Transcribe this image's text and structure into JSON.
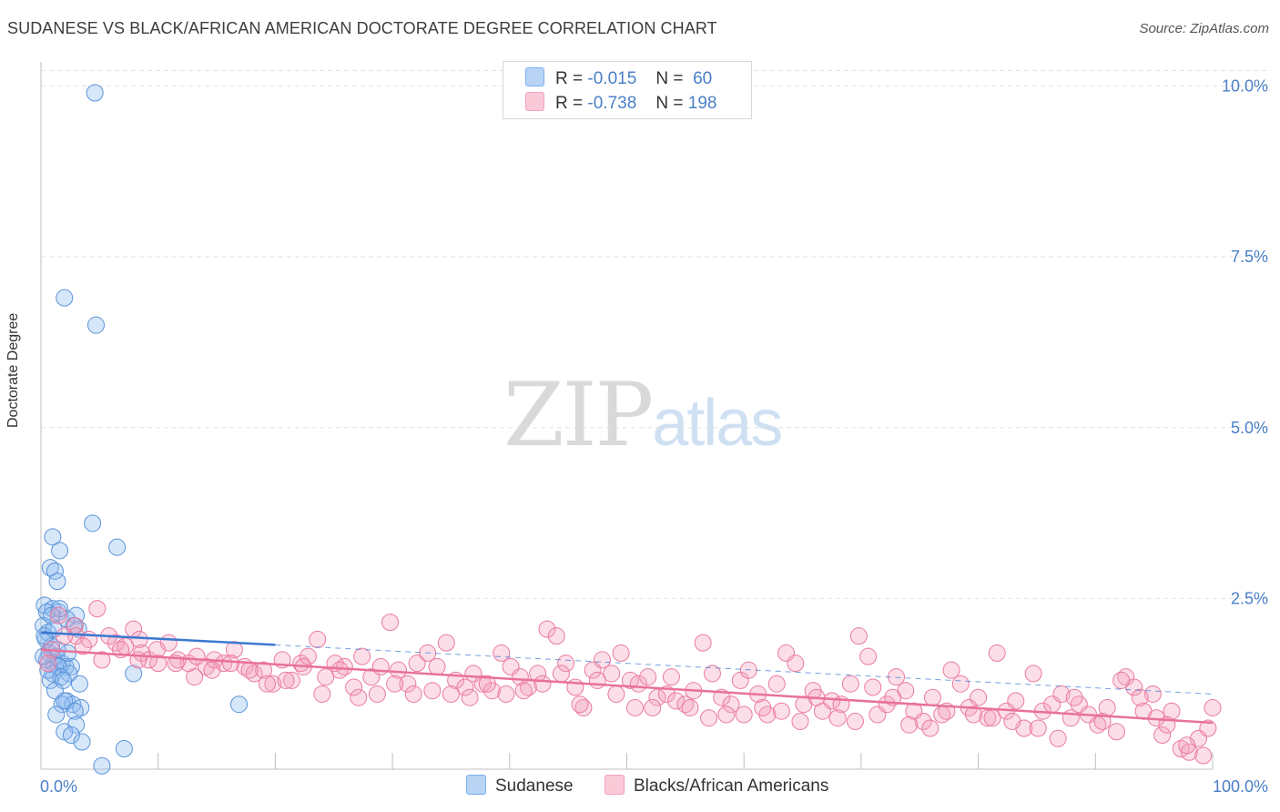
{
  "title": "SUDANESE VS BLACK/AFRICAN AMERICAN DOCTORATE DEGREE CORRELATION CHART",
  "source": "Source: ZipAtlas.com",
  "watermark": {
    "part1": "ZIP",
    "part2": "atlas"
  },
  "legend": {
    "r_label": "R =",
    "n_label": "N =",
    "series": [
      {
        "r": "-0.015",
        "n": "60",
        "color": "#7aaef0"
      },
      {
        "r": "-0.738",
        "n": "198",
        "color": "#f4a0bc"
      }
    ]
  },
  "bottom_legend": {
    "items": [
      "Sudanese",
      "Blacks/African Americans"
    ]
  },
  "chart_data": {
    "type": "scatter",
    "title": "SUDANESE VS BLACK/AFRICAN AMERICAN DOCTORATE DEGREE CORRELATION CHART",
    "xlabel": "",
    "ylabel": "Doctorate Degree",
    "xlim": [
      0,
      100
    ],
    "ylim": [
      0,
      10.3
    ],
    "x_tick_labels": [
      "0.0%",
      "100.0%"
    ],
    "y_ticks": [
      2.5,
      5.0,
      7.5,
      10.0
    ],
    "y_tick_labels": [
      "2.5%",
      "5.0%",
      "7.5%",
      "10.0%"
    ],
    "grid": true,
    "series": [
      {
        "name": "Sudanese",
        "color": "#7aaef0",
        "stroke": "#5b93d8",
        "trend": {
          "x0": 0,
          "y0": 2.0,
          "x1": 20,
          "y1": 1.82,
          "dash_x1": 100,
          "dash_y1": 1.1,
          "color": "#3a78d0"
        },
        "points": [
          [
            4.6,
            9.9
          ],
          [
            2.0,
            6.9
          ],
          [
            4.7,
            6.5
          ],
          [
            4.4,
            3.6
          ],
          [
            1.0,
            3.4
          ],
          [
            6.5,
            3.25
          ],
          [
            1.6,
            3.2
          ],
          [
            0.8,
            2.95
          ],
          [
            1.2,
            2.9
          ],
          [
            1.4,
            2.75
          ],
          [
            0.3,
            2.4
          ],
          [
            1.0,
            2.35
          ],
          [
            1.5,
            2.3
          ],
          [
            0.5,
            2.3
          ],
          [
            3.0,
            2.25
          ],
          [
            2.2,
            2.2
          ],
          [
            0.2,
            2.1
          ],
          [
            3.2,
            2.05
          ],
          [
            0.6,
            2.0
          ],
          [
            0.4,
            1.9
          ],
          [
            0.9,
            1.8
          ],
          [
            0.7,
            1.7
          ],
          [
            1.3,
            1.65
          ],
          [
            0.5,
            1.6
          ],
          [
            1.1,
            1.55
          ],
          [
            1.8,
            1.55
          ],
          [
            2.1,
            1.5
          ],
          [
            2.6,
            1.5
          ],
          [
            1.5,
            1.5
          ],
          [
            1.0,
            1.4
          ],
          [
            2.4,
            1.4
          ],
          [
            1.7,
            1.35
          ],
          [
            7.9,
            1.4
          ],
          [
            0.8,
            1.3
          ],
          [
            1.9,
            1.3
          ],
          [
            3.3,
            1.25
          ],
          [
            1.2,
            1.15
          ],
          [
            2.2,
            1.0
          ],
          [
            2.7,
            0.95
          ],
          [
            1.8,
            0.95
          ],
          [
            2.0,
            1.0
          ],
          [
            3.4,
            0.9
          ],
          [
            2.9,
            0.85
          ],
          [
            1.3,
            0.8
          ],
          [
            16.9,
            0.95
          ],
          [
            3.0,
            0.65
          ],
          [
            2.0,
            0.55
          ],
          [
            2.6,
            0.5
          ],
          [
            3.5,
            0.4
          ],
          [
            7.1,
            0.3
          ],
          [
            5.2,
            0.05
          ],
          [
            0.6,
            1.45
          ],
          [
            1.6,
            2.35
          ],
          [
            0.3,
            1.95
          ],
          [
            2.3,
            1.7
          ],
          [
            1.4,
            1.75
          ],
          [
            2.8,
            2.1
          ],
          [
            0.9,
            2.25
          ],
          [
            0.2,
            1.65
          ],
          [
            1.1,
            2.05
          ]
        ]
      },
      {
        "name": "Blacks/African Americans",
        "color": "#f4a0bc",
        "stroke": "#ea7aa0",
        "trend": {
          "x0": 0,
          "y0": 1.75,
          "x1": 100,
          "y1": 0.68,
          "color": "#e8719c"
        },
        "points": [
          [
            4.8,
            2.35
          ],
          [
            7.9,
            2.05
          ],
          [
            1.5,
            2.25
          ],
          [
            2.9,
            2.1
          ],
          [
            0.9,
            1.75
          ],
          [
            3.0,
            1.95
          ],
          [
            4.1,
            1.9
          ],
          [
            5.8,
            1.95
          ],
          [
            6.4,
            1.85
          ],
          [
            7.2,
            1.8
          ],
          [
            8.4,
            1.9
          ],
          [
            8.6,
            1.7
          ],
          [
            9.2,
            1.6
          ],
          [
            10.0,
            1.55
          ],
          [
            10.9,
            1.85
          ],
          [
            11.7,
            1.6
          ],
          [
            12.6,
            1.55
          ],
          [
            13.3,
            1.65
          ],
          [
            14.1,
            1.5
          ],
          [
            14.8,
            1.6
          ],
          [
            15.6,
            1.55
          ],
          [
            16.5,
            1.75
          ],
          [
            17.4,
            1.5
          ],
          [
            18.2,
            1.4
          ],
          [
            19.0,
            1.45
          ],
          [
            19.8,
            1.25
          ],
          [
            20.6,
            1.6
          ],
          [
            21.4,
            1.3
          ],
          [
            22.2,
            1.55
          ],
          [
            22.8,
            1.65
          ],
          [
            23.6,
            1.9
          ],
          [
            24.3,
            1.35
          ],
          [
            25.1,
            1.55
          ],
          [
            25.9,
            1.5
          ],
          [
            26.7,
            1.2
          ],
          [
            27.4,
            1.65
          ],
          [
            28.2,
            1.35
          ],
          [
            29.0,
            1.5
          ],
          [
            29.8,
            2.15
          ],
          [
            30.5,
            1.45
          ],
          [
            31.3,
            1.25
          ],
          [
            32.1,
            1.55
          ],
          [
            33.0,
            1.7
          ],
          [
            33.8,
            1.5
          ],
          [
            34.6,
            1.85
          ],
          [
            35.4,
            1.3
          ],
          [
            36.2,
            1.2
          ],
          [
            36.9,
            1.4
          ],
          [
            37.7,
            1.25
          ],
          [
            38.5,
            1.15
          ],
          [
            39.3,
            1.7
          ],
          [
            40.1,
            1.5
          ],
          [
            40.9,
            1.35
          ],
          [
            41.6,
            1.2
          ],
          [
            42.4,
            1.4
          ],
          [
            43.2,
            2.05
          ],
          [
            44.0,
            1.95
          ],
          [
            44.8,
            1.55
          ],
          [
            45.6,
            1.2
          ],
          [
            46.3,
            0.9
          ],
          [
            47.1,
            1.45
          ],
          [
            47.9,
            1.6
          ],
          [
            48.7,
            1.4
          ],
          [
            49.5,
            1.7
          ],
          [
            50.3,
            1.3
          ],
          [
            51.0,
            1.25
          ],
          [
            51.8,
            1.35
          ],
          [
            52.6,
            1.05
          ],
          [
            53.4,
            1.1
          ],
          [
            54.2,
            1.0
          ],
          [
            55.0,
            0.95
          ],
          [
            55.7,
            1.15
          ],
          [
            56.5,
            1.85
          ],
          [
            57.3,
            1.4
          ],
          [
            58.1,
            1.05
          ],
          [
            58.9,
            0.95
          ],
          [
            59.7,
            1.3
          ],
          [
            60.4,
            1.45
          ],
          [
            61.2,
            1.1
          ],
          [
            62.0,
            0.8
          ],
          [
            62.8,
            1.25
          ],
          [
            63.6,
            1.7
          ],
          [
            64.4,
            1.55
          ],
          [
            65.1,
            0.95
          ],
          [
            65.9,
            1.15
          ],
          [
            66.7,
            0.85
          ],
          [
            67.5,
            1.0
          ],
          [
            68.3,
            0.95
          ],
          [
            69.1,
            1.25
          ],
          [
            69.8,
            1.95
          ],
          [
            70.6,
            1.65
          ],
          [
            71.4,
            0.8
          ],
          [
            72.2,
            0.95
          ],
          [
            73.0,
            1.35
          ],
          [
            73.8,
            1.15
          ],
          [
            74.5,
            0.85
          ],
          [
            75.3,
            0.7
          ],
          [
            76.1,
            1.05
          ],
          [
            76.9,
            0.8
          ],
          [
            77.7,
            1.45
          ],
          [
            78.5,
            1.25
          ],
          [
            79.2,
            0.9
          ],
          [
            80.0,
            1.05
          ],
          [
            80.8,
            0.75
          ],
          [
            81.6,
            1.7
          ],
          [
            82.4,
            0.85
          ],
          [
            83.2,
            1.0
          ],
          [
            83.9,
            0.6
          ],
          [
            84.7,
            1.4
          ],
          [
            85.5,
            0.85
          ],
          [
            86.3,
            0.95
          ],
          [
            87.1,
            1.1
          ],
          [
            87.9,
            0.75
          ],
          [
            88.6,
            0.95
          ],
          [
            89.4,
            0.8
          ],
          [
            90.2,
            0.65
          ],
          [
            91.0,
            0.9
          ],
          [
            91.8,
            0.55
          ],
          [
            92.6,
            1.35
          ],
          [
            93.3,
            1.2
          ],
          [
            94.1,
            0.85
          ],
          [
            94.9,
            1.1
          ],
          [
            95.7,
            0.5
          ],
          [
            96.5,
            0.85
          ],
          [
            97.3,
            0.3
          ],
          [
            98.0,
            0.25
          ],
          [
            98.8,
            0.45
          ],
          [
            99.6,
            0.6
          ],
          [
            100.0,
            0.9
          ],
          [
            99.2,
            0.2
          ],
          [
            97.8,
            0.35
          ],
          [
            96.1,
            0.65
          ],
          [
            95.2,
            0.75
          ],
          [
            93.8,
            1.05
          ],
          [
            92.2,
            1.3
          ],
          [
            90.6,
            0.7
          ],
          [
            88.2,
            1.05
          ],
          [
            86.8,
            0.45
          ],
          [
            85.1,
            0.6
          ],
          [
            82.9,
            0.7
          ],
          [
            81.2,
            0.75
          ],
          [
            79.6,
            0.8
          ],
          [
            77.3,
            0.85
          ],
          [
            75.9,
            0.6
          ],
          [
            74.1,
            0.65
          ],
          [
            72.7,
            1.05
          ],
          [
            71.0,
            1.2
          ],
          [
            69.5,
            0.7
          ],
          [
            68.0,
            0.75
          ],
          [
            66.2,
            1.05
          ],
          [
            64.8,
            0.7
          ],
          [
            63.2,
            0.85
          ],
          [
            61.6,
            0.9
          ],
          [
            60.0,
            0.8
          ],
          [
            58.5,
            0.8
          ],
          [
            57.0,
            0.75
          ],
          [
            55.4,
            0.9
          ],
          [
            53.8,
            1.35
          ],
          [
            52.2,
            0.9
          ],
          [
            50.7,
            0.9
          ],
          [
            49.1,
            1.1
          ],
          [
            47.5,
            1.3
          ],
          [
            46.0,
            0.95
          ],
          [
            44.4,
            1.4
          ],
          [
            42.8,
            1.25
          ],
          [
            41.2,
            1.15
          ],
          [
            39.7,
            1.1
          ],
          [
            38.1,
            1.25
          ],
          [
            36.6,
            1.05
          ],
          [
            35.0,
            1.1
          ],
          [
            33.4,
            1.15
          ],
          [
            31.8,
            1.1
          ],
          [
            30.2,
            1.25
          ],
          [
            28.7,
            1.1
          ],
          [
            27.1,
            1.05
          ],
          [
            25.5,
            1.45
          ],
          [
            24.0,
            1.1
          ],
          [
            22.4,
            1.5
          ],
          [
            20.9,
            1.3
          ],
          [
            19.3,
            1.25
          ],
          [
            17.8,
            1.45
          ],
          [
            16.2,
            1.55
          ],
          [
            14.6,
            1.45
          ],
          [
            13.1,
            1.35
          ],
          [
            11.5,
            1.55
          ],
          [
            9.9,
            1.75
          ],
          [
            8.3,
            1.6
          ],
          [
            6.8,
            1.75
          ],
          [
            5.2,
            1.6
          ],
          [
            3.6,
            1.8
          ],
          [
            2.0,
            1.95
          ],
          [
            0.6,
            1.55
          ]
        ]
      }
    ]
  }
}
